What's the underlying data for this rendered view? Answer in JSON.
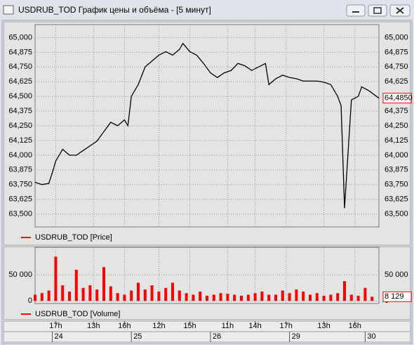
{
  "window": {
    "title": "USDRUB_TOD График цены и объёма - [5 минут]"
  },
  "chart_data": [
    {
      "type": "line",
      "series": [
        {
          "name": "USDRUB_TOD [Price]",
          "color": "#000000",
          "x": [
            0,
            2,
            4,
            5,
            6,
            8,
            10,
            12,
            14,
            16,
            18,
            20,
            22,
            24,
            26,
            27,
            28,
            30,
            32,
            34,
            36,
            38,
            40,
            42,
            43,
            45,
            47,
            49,
            51,
            53,
            55,
            57,
            59,
            61,
            63,
            65,
            67,
            68,
            70,
            72,
            74,
            76,
            78,
            80,
            82,
            84,
            86,
            88,
            89,
            90,
            92,
            94,
            95,
            97,
            100
          ],
          "values": [
            63.77,
            63.75,
            63.76,
            63.85,
            63.95,
            64.05,
            64.0,
            64.0,
            64.04,
            64.08,
            64.12,
            64.2,
            64.28,
            64.25,
            64.3,
            64.25,
            64.5,
            64.6,
            64.75,
            64.8,
            64.85,
            64.88,
            64.85,
            64.9,
            64.95,
            64.88,
            64.85,
            64.78,
            64.7,
            64.66,
            64.7,
            64.72,
            64.78,
            64.76,
            64.72,
            64.75,
            64.78,
            64.6,
            64.65,
            64.68,
            64.66,
            64.65,
            64.63,
            64.63,
            64.63,
            64.62,
            64.6,
            64.5,
            64.42,
            63.55,
            64.47,
            64.5,
            64.58,
            64.55,
            64.485
          ],
          "last_label": "64,4850",
          "legend_color": "#ff0000"
        }
      ],
      "xlim": [
        0,
        100
      ],
      "ylim": [
        63.39,
        65.11
      ],
      "yticks": [
        {
          "value": 63.5,
          "label": "63,500"
        },
        {
          "value": 63.625,
          "label": "63,625"
        },
        {
          "value": 63.75,
          "label": "63,750"
        },
        {
          "value": 63.875,
          "label": "63,875"
        },
        {
          "value": 64,
          "label": "64,000"
        },
        {
          "value": 64.125,
          "label": "64,125"
        },
        {
          "value": 64.25,
          "label": "64,250"
        },
        {
          "value": 64.375,
          "label": "64,375"
        },
        {
          "value": 64.5,
          "label": "64,500"
        },
        {
          "value": 64.625,
          "label": "64,625"
        },
        {
          "value": 64.75,
          "label": "64,750"
        },
        {
          "value": 64.875,
          "label": "64,875"
        },
        {
          "value": 65,
          "label": "65,000"
        }
      ],
      "grid": true
    },
    {
      "type": "bar",
      "series": [
        {
          "name": "USDRUB_TOD [Volume]",
          "color": "#ff0000",
          "x": [
            0,
            2,
            4,
            6,
            8,
            10,
            12,
            14,
            16,
            18,
            20,
            22,
            24,
            26,
            28,
            30,
            32,
            34,
            36,
            38,
            40,
            42,
            44,
            46,
            48,
            50,
            52,
            54,
            56,
            58,
            60,
            62,
            64,
            66,
            68,
            70,
            72,
            74,
            76,
            78,
            80,
            82,
            84,
            86,
            88,
            90,
            92,
            94,
            96,
            98
          ],
          "values": [
            12000,
            15000,
            20000,
            85000,
            30000,
            18000,
            60000,
            25000,
            30000,
            22000,
            65000,
            28000,
            15000,
            12000,
            20000,
            35000,
            22000,
            30000,
            18000,
            25000,
            35000,
            20000,
            15000,
            12000,
            18000,
            10000,
            12000,
            15000,
            14000,
            12000,
            10000,
            12000,
            15000,
            18000,
            12000,
            12000,
            20000,
            15000,
            22000,
            18000,
            12000,
            15000,
            10000,
            12000,
            15000,
            38000,
            12000,
            10000,
            25000,
            8129
          ],
          "last_label": "8 129"
        }
      ],
      "xlim": [
        0,
        100
      ],
      "ylim": [
        -5000,
        103000
      ],
      "yticks": [
        0,
        {
          "value": 50000,
          "label": "50 000"
        }
      ],
      "xticks": [
        {
          "value": 6,
          "label": "17h"
        },
        {
          "value": 17,
          "label": "13h"
        },
        {
          "value": 26,
          "label": "16h"
        },
        {
          "value": 36,
          "label": "12h"
        },
        {
          "value": 45,
          "label": "15h"
        },
        {
          "value": 56,
          "label": "11h"
        },
        {
          "value": 64,
          "label": "14h"
        },
        {
          "value": 73,
          "label": "17h"
        },
        {
          "value": 84,
          "label": "13h"
        },
        {
          "value": 93,
          "label": "16h"
        }
      ],
      "date_ticks": [
        {
          "value": 5,
          "label": "24"
        },
        {
          "value": 28,
          "label": "25"
        },
        {
          "value": 51,
          "label": "26"
        },
        {
          "value": 74,
          "label": "29"
        },
        {
          "value": 96,
          "label": "30"
        }
      ],
      "grid": true
    }
  ]
}
